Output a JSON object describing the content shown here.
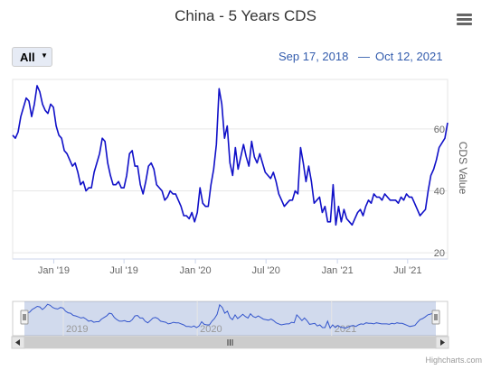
{
  "header": {
    "title": "China - 5 Years CDS",
    "menu_icon": "hamburger-menu-icon"
  },
  "range_selector": {
    "selected": "All",
    "from_date": "Sep 17, 2018",
    "separator": "—",
    "to_date": "Oct 12, 2021"
  },
  "credit": "Highcharts.com",
  "chart_data": {
    "type": "line",
    "title": "China - 5 Years CDS",
    "xlabel": "",
    "ylabel": "CDS Value",
    "xlim": [
      "2018-09-17",
      "2021-10-12"
    ],
    "ylim": [
      18,
      76
    ],
    "x_ticks": [
      "Jan '19",
      "Jul '19",
      "Jan '20",
      "Jul '20",
      "Jan '21",
      "Jul '21"
    ],
    "x_tick_dates": [
      "2019-01-01",
      "2019-07-01",
      "2020-01-01",
      "2020-07-01",
      "2021-01-01",
      "2021-07-01"
    ],
    "y_ticks": [
      20,
      40,
      60
    ],
    "grid": true,
    "y_axis_side": "right",
    "line_color": "#1010c8",
    "navigator": {
      "x_labels": [
        "2019",
        "2020",
        "2021"
      ],
      "x_label_dates": [
        "2019-01-01",
        "2020-01-01",
        "2021-01-01"
      ]
    },
    "series": [
      {
        "values": [
          [
            "2018-09-17",
            58
          ],
          [
            "2018-09-24",
            57
          ],
          [
            "2018-10-01",
            59
          ],
          [
            "2018-10-08",
            64
          ],
          [
            "2018-10-15",
            67
          ],
          [
            "2018-10-22",
            70
          ],
          [
            "2018-10-29",
            69
          ],
          [
            "2018-11-05",
            64
          ],
          [
            "2018-11-12",
            68
          ],
          [
            "2018-11-19",
            74
          ],
          [
            "2018-11-26",
            72
          ],
          [
            "2018-12-03",
            68
          ],
          [
            "2018-12-10",
            66
          ],
          [
            "2018-12-17",
            65
          ],
          [
            "2018-12-24",
            68
          ],
          [
            "2018-12-31",
            67
          ],
          [
            "2019-01-07",
            61
          ],
          [
            "2019-01-14",
            58
          ],
          [
            "2019-01-21",
            57
          ],
          [
            "2019-01-28",
            53
          ],
          [
            "2019-02-04",
            52
          ],
          [
            "2019-02-11",
            50
          ],
          [
            "2019-02-18",
            48
          ],
          [
            "2019-02-25",
            49
          ],
          [
            "2019-03-04",
            46
          ],
          [
            "2019-03-11",
            42
          ],
          [
            "2019-03-18",
            43
          ],
          [
            "2019-03-25",
            40
          ],
          [
            "2019-04-01",
            41
          ],
          [
            "2019-04-08",
            41
          ],
          [
            "2019-04-15",
            46
          ],
          [
            "2019-04-22",
            49
          ],
          [
            "2019-04-29",
            52
          ],
          [
            "2019-05-06",
            57
          ],
          [
            "2019-05-13",
            56
          ],
          [
            "2019-05-20",
            49
          ],
          [
            "2019-05-27",
            45
          ],
          [
            "2019-06-03",
            42
          ],
          [
            "2019-06-10",
            42
          ],
          [
            "2019-06-17",
            43
          ],
          [
            "2019-06-24",
            41
          ],
          [
            "2019-07-01",
            41
          ],
          [
            "2019-07-08",
            45
          ],
          [
            "2019-07-15",
            52
          ],
          [
            "2019-07-22",
            53
          ],
          [
            "2019-07-29",
            48
          ],
          [
            "2019-08-05",
            48
          ],
          [
            "2019-08-12",
            42
          ],
          [
            "2019-08-19",
            39
          ],
          [
            "2019-08-26",
            43
          ],
          [
            "2019-09-02",
            48
          ],
          [
            "2019-09-09",
            49
          ],
          [
            "2019-09-16",
            47
          ],
          [
            "2019-09-23",
            42
          ],
          [
            "2019-09-30",
            41
          ],
          [
            "2019-10-07",
            40
          ],
          [
            "2019-10-14",
            37
          ],
          [
            "2019-10-21",
            38
          ],
          [
            "2019-10-28",
            40
          ],
          [
            "2019-11-04",
            39
          ],
          [
            "2019-11-11",
            39
          ],
          [
            "2019-11-18",
            37
          ],
          [
            "2019-11-25",
            35
          ],
          [
            "2019-12-02",
            32
          ],
          [
            "2019-12-09",
            32
          ],
          [
            "2019-12-16",
            31
          ],
          [
            "2019-12-23",
            33
          ],
          [
            "2019-12-30",
            30
          ],
          [
            "2020-01-06",
            33
          ],
          [
            "2020-01-13",
            41
          ],
          [
            "2020-01-20",
            36
          ],
          [
            "2020-01-27",
            35
          ],
          [
            "2020-02-03",
            35
          ],
          [
            "2020-02-10",
            42
          ],
          [
            "2020-02-17",
            47
          ],
          [
            "2020-02-24",
            55
          ],
          [
            "2020-03-02",
            73
          ],
          [
            "2020-03-09",
            68
          ],
          [
            "2020-03-16",
            57
          ],
          [
            "2020-03-23",
            61
          ],
          [
            "2020-03-30",
            49
          ],
          [
            "2020-04-06",
            45
          ],
          [
            "2020-04-13",
            54
          ],
          [
            "2020-04-20",
            47
          ],
          [
            "2020-04-27",
            51
          ],
          [
            "2020-05-04",
            55
          ],
          [
            "2020-05-11",
            51
          ],
          [
            "2020-05-18",
            48
          ],
          [
            "2020-05-25",
            56
          ],
          [
            "2020-06-01",
            51
          ],
          [
            "2020-06-08",
            49
          ],
          [
            "2020-06-15",
            52
          ],
          [
            "2020-06-22",
            49
          ],
          [
            "2020-06-29",
            46
          ],
          [
            "2020-07-06",
            45
          ],
          [
            "2020-07-13",
            44
          ],
          [
            "2020-07-20",
            46
          ],
          [
            "2020-07-27",
            43
          ],
          [
            "2020-08-03",
            39
          ],
          [
            "2020-08-10",
            37
          ],
          [
            "2020-08-17",
            35
          ],
          [
            "2020-08-24",
            36
          ],
          [
            "2020-08-31",
            37
          ],
          [
            "2020-09-07",
            37
          ],
          [
            "2020-09-14",
            40
          ],
          [
            "2020-09-21",
            39
          ],
          [
            "2020-09-28",
            54
          ],
          [
            "2020-10-05",
            49
          ],
          [
            "2020-10-12",
            43
          ],
          [
            "2020-10-19",
            48
          ],
          [
            "2020-10-26",
            43
          ],
          [
            "2020-11-02",
            36
          ],
          [
            "2020-11-09",
            37
          ],
          [
            "2020-11-16",
            38
          ],
          [
            "2020-11-23",
            33
          ],
          [
            "2020-11-30",
            35
          ],
          [
            "2020-12-07",
            30
          ],
          [
            "2020-12-14",
            30
          ],
          [
            "2020-12-21",
            42
          ],
          [
            "2020-12-28",
            29
          ],
          [
            "2021-01-04",
            35
          ],
          [
            "2021-01-11",
            30
          ],
          [
            "2021-01-18",
            34
          ],
          [
            "2021-01-25",
            31
          ],
          [
            "2021-02-01",
            30
          ],
          [
            "2021-02-08",
            29
          ],
          [
            "2021-02-15",
            31
          ],
          [
            "2021-02-22",
            33
          ],
          [
            "2021-03-01",
            34
          ],
          [
            "2021-03-08",
            32
          ],
          [
            "2021-03-15",
            35
          ],
          [
            "2021-03-22",
            37
          ],
          [
            "2021-03-29",
            36
          ],
          [
            "2021-04-05",
            39
          ],
          [
            "2021-04-12",
            38
          ],
          [
            "2021-04-19",
            38
          ],
          [
            "2021-04-26",
            37
          ],
          [
            "2021-05-03",
            39
          ],
          [
            "2021-05-10",
            38
          ],
          [
            "2021-05-17",
            37
          ],
          [
            "2021-05-24",
            37
          ],
          [
            "2021-05-31",
            37
          ],
          [
            "2021-06-07",
            36
          ],
          [
            "2021-06-14",
            38
          ],
          [
            "2021-06-21",
            37
          ],
          [
            "2021-06-28",
            39
          ],
          [
            "2021-07-05",
            38
          ],
          [
            "2021-07-12",
            38
          ],
          [
            "2021-07-19",
            36
          ],
          [
            "2021-07-26",
            34
          ],
          [
            "2021-08-02",
            32
          ],
          [
            "2021-08-09",
            33
          ],
          [
            "2021-08-16",
            34
          ],
          [
            "2021-08-23",
            40
          ],
          [
            "2021-08-30",
            45
          ],
          [
            "2021-09-06",
            47
          ],
          [
            "2021-09-13",
            50
          ],
          [
            "2021-09-20",
            54
          ],
          [
            "2021-10-05",
            57
          ],
          [
            "2021-10-12",
            62
          ]
        ]
      }
    ]
  }
}
